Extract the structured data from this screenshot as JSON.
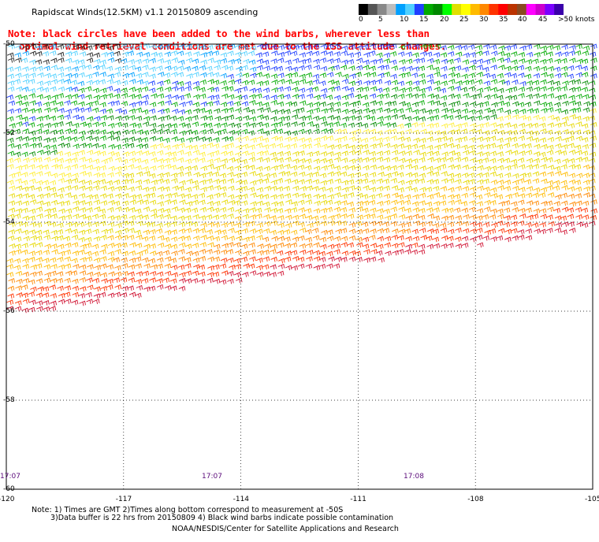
{
  "title": "Rapidscat Winds(12.5KM) v1.1 20150809 ascending",
  "note": {
    "line1": "Note: black circles have been added to the wind barbs, wherever less than",
    "line2": "optimal wind retrieval conditions are met due to the ISS attitude changes."
  },
  "legend": {
    "unit": "knots",
    "labels": [
      "0",
      "5",
      "10",
      "15",
      "20",
      "25",
      "30",
      "35",
      "40",
      "45",
      ">50 knots"
    ],
    "colors": [
      "#000000",
      "#555555",
      "#888888",
      "#bdbdbd",
      "#00a0ff",
      "#4fd0ff",
      "#1f3fff",
      "#00aa00",
      "#008800",
      "#00ff00",
      "#e0e000",
      "#ffff00",
      "#ffbb00",
      "#ff8800",
      "#ff3300",
      "#ff0000",
      "#bb3300",
      "#8a4a20",
      "#ff00ff",
      "#cc00cc",
      "#7a00ff",
      "#3a00aa"
    ]
  },
  "map": {
    "lat_labels": [
      "-50",
      "-52",
      "-54",
      "-56",
      "-58",
      "-60"
    ],
    "lon_labels": [
      "-120",
      "-117",
      "-114",
      "-111",
      "-108",
      "-105"
    ],
    "time_labels": [
      "17:07",
      "17:07",
      "17:08"
    ]
  },
  "footer": {
    "line1": "Note: 1) Times are GMT 2)Times along bottom correspond to measurement at -50S",
    "line2": "3)Data buffer is 22 hrs from 20150809 4) Black wind barbs indicate possible contamination",
    "line3": "NOAA/NESDIS/Center for Satellite Applications and Research"
  }
}
